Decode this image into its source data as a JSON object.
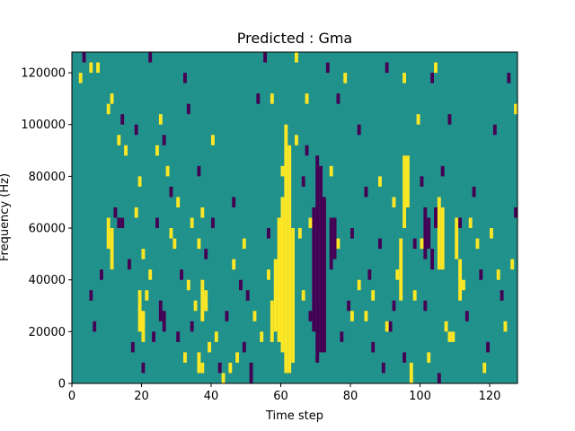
{
  "chart_data": {
    "type": "heatmap",
    "title": "Predicted : Gma",
    "xlabel": "Time step",
    "ylabel": "Frequency (Hz)",
    "xlim": [
      0,
      128
    ],
    "ylim": [
      0,
      128000
    ],
    "x_ticks": [
      0,
      20,
      40,
      60,
      80,
      100,
      120
    ],
    "y_ticks": [
      0,
      20000,
      40000,
      60000,
      80000,
      100000,
      120000
    ],
    "x_tick_labels": [
      "0",
      "20",
      "40",
      "60",
      "80",
      "100",
      "120"
    ],
    "y_tick_labels": [
      "0",
      "20000",
      "40000",
      "60000",
      "80000",
      "100000",
      "120000"
    ],
    "grid": false,
    "colormap": "viridis",
    "cell_values_meaning": "0 = low (purple), 1 = neutral (teal), 2 = high (yellow)",
    "palette": {
      "low": "#440154",
      "neutral": "#21918c",
      "high": "#fde725"
    },
    "background_value": 1,
    "cell_height_hz": 4000,
    "high_cells": [
      {
        "x": 61,
        "y0": 4000,
        "y1": 100000
      },
      {
        "x": 62,
        "y0": 4000,
        "y1": 92000
      },
      {
        "x": 60,
        "y0": 12000,
        "y1": 72000
      },
      {
        "x": 59,
        "y0": 16000,
        "y1": 64000
      },
      {
        "x": 58,
        "y0": 20000,
        "y1": 48000
      },
      {
        "x": 63,
        "y0": 8000,
        "y1": 60000
      },
      {
        "x": 57,
        "y0": 16000,
        "y1": 32000
      },
      {
        "x": 96,
        "y0": 68000,
        "y1": 88000
      },
      {
        "x": 95,
        "y0": 60000,
        "y1": 88000
      },
      {
        "x": 97,
        "y0": 0,
        "y1": 8000
      },
      {
        "x": 94,
        "y0": 32000,
        "y1": 56000
      },
      {
        "x": 105,
        "y0": 44000,
        "y1": 72000
      },
      {
        "x": 106,
        "y0": 44000,
        "y1": 68000
      },
      {
        "x": 110,
        "y0": 48000,
        "y1": 64000
      },
      {
        "x": 111,
        "y0": 32000,
        "y1": 48000
      },
      {
        "x": 108,
        "y0": 16000,
        "y1": 20000
      },
      {
        "x": 109,
        "y0": 16000,
        "y1": 20000
      },
      {
        "x": 10,
        "y0": 52000,
        "y1": 64000
      },
      {
        "x": 11,
        "y0": 44000,
        "y1": 60000
      },
      {
        "x": 19,
        "y0": 20000,
        "y1": 36000
      },
      {
        "x": 20,
        "y0": 16000,
        "y1": 28000
      },
      {
        "x": 37,
        "y0": 24000,
        "y1": 40000
      },
      {
        "x": 38,
        "y0": 28000,
        "y1": 36000
      },
      {
        "x": 36,
        "y0": 4000,
        "y1": 12000
      },
      {
        "x": 37,
        "y0": 4000,
        "y1": 8000
      },
      {
        "x": 74,
        "y0": 80000,
        "y1": 84000
      },
      {
        "x": 64,
        "y0": 92000,
        "y1": 96000
      }
    ],
    "low_cells": [
      {
        "x": 70,
        "y0": 8000,
        "y1": 88000
      },
      {
        "x": 71,
        "y0": 12000,
        "y1": 84000
      },
      {
        "x": 72,
        "y0": 12000,
        "y1": 72000
      },
      {
        "x": 69,
        "y0": 20000,
        "y1": 68000
      },
      {
        "x": 74,
        "y0": 44000,
        "y1": 64000
      },
      {
        "x": 75,
        "y0": 48000,
        "y1": 64000
      },
      {
        "x": 101,
        "y0": 48000,
        "y1": 68000
      },
      {
        "x": 102,
        "y0": 52000,
        "y1": 64000
      },
      {
        "x": 104,
        "y0": 60000,
        "y1": 68000
      },
      {
        "x": 103,
        "y0": 44000,
        "y1": 52000
      },
      {
        "x": 13,
        "y0": 60000,
        "y1": 64000
      },
      {
        "x": 14,
        "y0": 60000,
        "y1": 64000
      },
      {
        "x": 25,
        "y0": 24000,
        "y1": 32000
      },
      {
        "x": 26,
        "y0": 20000,
        "y1": 28000
      },
      {
        "x": 91,
        "y0": 20000,
        "y1": 24000
      },
      {
        "x": 51,
        "y0": 0,
        "y1": 8000
      }
    ],
    "scatter_cells": {
      "high": [
        [
          2,
          120000
        ],
        [
          5,
          124000
        ],
        [
          7,
          124000
        ],
        [
          10,
          108000
        ],
        [
          11,
          112000
        ],
        [
          13,
          96000
        ],
        [
          15,
          92000
        ],
        [
          18,
          68000
        ],
        [
          19,
          80000
        ],
        [
          20,
          52000
        ],
        [
          21,
          36000
        ],
        [
          22,
          44000
        ],
        [
          24,
          92000
        ],
        [
          25,
          104000
        ],
        [
          27,
          84000
        ],
        [
          28,
          60000
        ],
        [
          29,
          56000
        ],
        [
          30,
          72000
        ],
        [
          32,
          12000
        ],
        [
          33,
          40000
        ],
        [
          34,
          64000
        ],
        [
          35,
          32000
        ],
        [
          36,
          56000
        ],
        [
          37,
          68000
        ],
        [
          38,
          32000
        ],
        [
          39,
          16000
        ],
        [
          40,
          96000
        ],
        [
          41,
          20000
        ],
        [
          43,
          4000
        ],
        [
          45,
          8000
        ],
        [
          46,
          48000
        ],
        [
          47,
          12000
        ],
        [
          49,
          56000
        ],
        [
          52,
          28000
        ],
        [
          54,
          20000
        ],
        [
          56,
          44000
        ],
        [
          57,
          112000
        ],
        [
          59,
          36000
        ],
        [
          60,
          84000
        ],
        [
          64,
          128000
        ],
        [
          65,
          60000
        ],
        [
          66,
          36000
        ],
        [
          67,
          112000
        ],
        [
          68,
          64000
        ],
        [
          76,
          56000
        ],
        [
          78,
          120000
        ],
        [
          80,
          28000
        ],
        [
          82,
          40000
        ],
        [
          84,
          28000
        ],
        [
          86,
          36000
        ],
        [
          88,
          80000
        ],
        [
          90,
          24000
        ],
        [
          92,
          72000
        ],
        [
          93,
          44000
        ],
        [
          95,
          120000
        ],
        [
          98,
          36000
        ],
        [
          99,
          104000
        ],
        [
          100,
          56000
        ],
        [
          102,
          12000
        ],
        [
          104,
          124000
        ],
        [
          107,
          24000
        ],
        [
          112,
          40000
        ],
        [
          114,
          64000
        ],
        [
          116,
          56000
        ],
        [
          118,
          8000
        ],
        [
          120,
          60000
        ],
        [
          122,
          44000
        ],
        [
          124,
          24000
        ],
        [
          126,
          48000
        ],
        [
          127,
          108000
        ]
      ],
      "low": [
        [
          3,
          128000
        ],
        [
          5,
          36000
        ],
        [
          6,
          24000
        ],
        [
          8,
          44000
        ],
        [
          12,
          68000
        ],
        [
          14,
          104000
        ],
        [
          16,
          48000
        ],
        [
          17,
          16000
        ],
        [
          18,
          100000
        ],
        [
          20,
          8000
        ],
        [
          22,
          128000
        ],
        [
          23,
          20000
        ],
        [
          24,
          64000
        ],
        [
          26,
          96000
        ],
        [
          28,
          76000
        ],
        [
          30,
          20000
        ],
        [
          31,
          44000
        ],
        [
          32,
          120000
        ],
        [
          33,
          108000
        ],
        [
          34,
          24000
        ],
        [
          36,
          84000
        ],
        [
          38,
          52000
        ],
        [
          40,
          64000
        ],
        [
          42,
          8000
        ],
        [
          44,
          28000
        ],
        [
          46,
          72000
        ],
        [
          48,
          40000
        ],
        [
          49,
          16000
        ],
        [
          50,
          36000
        ],
        [
          53,
          112000
        ],
        [
          55,
          128000
        ],
        [
          56,
          60000
        ],
        [
          66,
          80000
        ],
        [
          67,
          92000
        ],
        [
          68,
          28000
        ],
        [
          73,
          124000
        ],
        [
          76,
          112000
        ],
        [
          77,
          20000
        ],
        [
          79,
          32000
        ],
        [
          80,
          60000
        ],
        [
          82,
          100000
        ],
        [
          84,
          76000
        ],
        [
          85,
          44000
        ],
        [
          86,
          16000
        ],
        [
          88,
          56000
        ],
        [
          89,
          8000
        ],
        [
          90,
          124000
        ],
        [
          92,
          32000
        ],
        [
          95,
          12000
        ],
        [
          98,
          56000
        ],
        [
          100,
          80000
        ],
        [
          101,
          32000
        ],
        [
          103,
          120000
        ],
        [
          105,
          4000
        ],
        [
          106,
          84000
        ],
        [
          108,
          104000
        ],
        [
          111,
          64000
        ],
        [
          113,
          28000
        ],
        [
          115,
          76000
        ],
        [
          117,
          44000
        ],
        [
          119,
          16000
        ],
        [
          121,
          100000
        ],
        [
          123,
          36000
        ],
        [
          125,
          120000
        ],
        [
          127,
          68000
        ]
      ]
    }
  }
}
